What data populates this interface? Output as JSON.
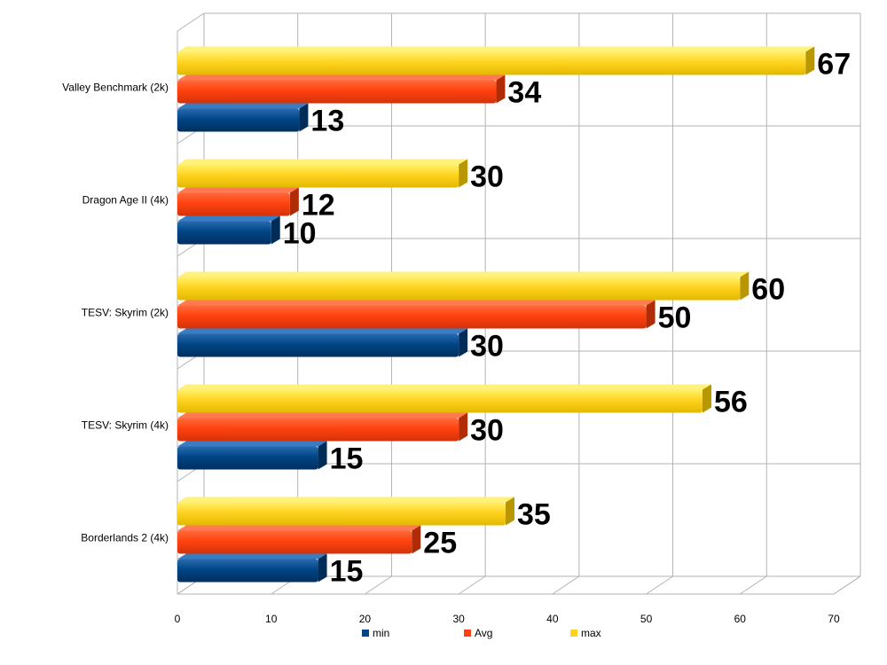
{
  "chart_data": {
    "type": "bar",
    "orientation": "horizontal",
    "style": "3d",
    "categories": [
      "Valley Benchmark (2k)",
      "Dragon Age II (4k)",
      "TESV: Skyrim (2k)",
      "TESV: Skyrim (4k)",
      "Borderlands 2 (4k)"
    ],
    "series": [
      {
        "name": "min",
        "color": "#004586",
        "values": [
          13,
          10,
          30,
          15,
          15
        ]
      },
      {
        "name": "Avg",
        "color": "#ff420e",
        "values": [
          34,
          12,
          50,
          30,
          25
        ]
      },
      {
        "name": "max",
        "color": "#ffd320",
        "values": [
          67,
          30,
          60,
          56,
          35
        ]
      }
    ],
    "x_ticks": [
      "0",
      "10",
      "20",
      "30",
      "40",
      "50",
      "60",
      "70"
    ],
    "xlim": [
      0,
      70
    ],
    "grid": true,
    "data_labels": true,
    "legend_position": "bottom",
    "title": "",
    "xlabel": "",
    "ylabel": ""
  }
}
